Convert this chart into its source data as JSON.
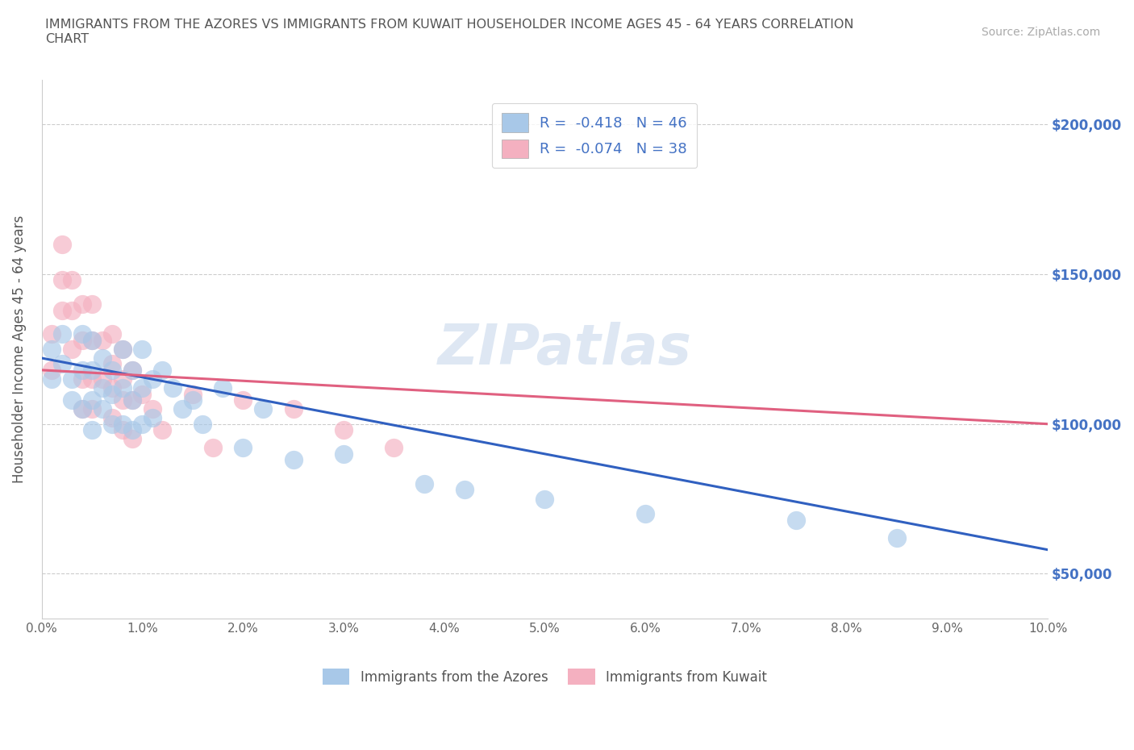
{
  "title": "IMMIGRANTS FROM THE AZORES VS IMMIGRANTS FROM KUWAIT HOUSEHOLDER INCOME AGES 45 - 64 YEARS CORRELATION\nCHART",
  "source": "Source: ZipAtlas.com",
  "ylabel": "Householder Income Ages 45 - 64 years",
  "xlim": [
    0.0,
    0.1
  ],
  "ylim": [
    35000,
    215000
  ],
  "yticks": [
    50000,
    100000,
    150000,
    200000
  ],
  "ytick_labels": [
    "$50,000",
    "$100,000",
    "$150,000",
    "$200,000"
  ],
  "xticks": [
    0.0,
    0.01,
    0.02,
    0.03,
    0.04,
    0.05,
    0.06,
    0.07,
    0.08,
    0.09,
    0.1
  ],
  "xtick_labels": [
    "0.0%",
    "1.0%",
    "2.0%",
    "3.0%",
    "4.0%",
    "5.0%",
    "6.0%",
    "7.0%",
    "8.0%",
    "9.0%",
    "10.0%"
  ],
  "azores_color": "#a8c8e8",
  "kuwait_color": "#f4b0c0",
  "azores_R": -0.418,
  "azores_N": 46,
  "kuwait_R": -0.074,
  "kuwait_N": 38,
  "azores_line_color": "#3060c0",
  "kuwait_line_color": "#e06080",
  "legend_label_azores": "Immigrants from the Azores",
  "legend_label_kuwait": "Immigrants from Kuwait",
  "watermark": "ZIPatlas",
  "background_color": "#ffffff",
  "azores_x": [
    0.001,
    0.001,
    0.002,
    0.002,
    0.003,
    0.003,
    0.004,
    0.004,
    0.004,
    0.005,
    0.005,
    0.005,
    0.005,
    0.006,
    0.006,
    0.006,
    0.007,
    0.007,
    0.007,
    0.008,
    0.008,
    0.008,
    0.009,
    0.009,
    0.009,
    0.01,
    0.01,
    0.01,
    0.011,
    0.011,
    0.012,
    0.013,
    0.014,
    0.015,
    0.016,
    0.018,
    0.02,
    0.022,
    0.025,
    0.03,
    0.038,
    0.042,
    0.05,
    0.06,
    0.075,
    0.085
  ],
  "azores_y": [
    125000,
    115000,
    130000,
    120000,
    115000,
    108000,
    130000,
    118000,
    105000,
    128000,
    118000,
    108000,
    98000,
    122000,
    112000,
    105000,
    118000,
    110000,
    100000,
    125000,
    112000,
    100000,
    118000,
    108000,
    98000,
    125000,
    112000,
    100000,
    115000,
    102000,
    118000,
    112000,
    105000,
    108000,
    100000,
    112000,
    92000,
    105000,
    88000,
    90000,
    80000,
    78000,
    75000,
    70000,
    68000,
    62000
  ],
  "kuwait_x": [
    0.001,
    0.001,
    0.002,
    0.002,
    0.002,
    0.003,
    0.003,
    0.003,
    0.004,
    0.004,
    0.004,
    0.004,
    0.005,
    0.005,
    0.005,
    0.005,
    0.006,
    0.006,
    0.007,
    0.007,
    0.007,
    0.007,
    0.008,
    0.008,
    0.008,
    0.008,
    0.009,
    0.009,
    0.009,
    0.01,
    0.011,
    0.012,
    0.015,
    0.017,
    0.02,
    0.025,
    0.03,
    0.035
  ],
  "kuwait_y": [
    130000,
    118000,
    160000,
    148000,
    138000,
    148000,
    138000,
    125000,
    140000,
    128000,
    115000,
    105000,
    140000,
    128000,
    115000,
    105000,
    128000,
    115000,
    130000,
    120000,
    112000,
    102000,
    125000,
    115000,
    108000,
    98000,
    118000,
    108000,
    95000,
    110000,
    105000,
    98000,
    110000,
    92000,
    108000,
    105000,
    98000,
    92000
  ],
  "azores_line_x0": 0.0,
  "azores_line_y0": 122000,
  "azores_line_x1": 0.1,
  "azores_line_y1": 58000,
  "kuwait_line_x0": 0.0,
  "kuwait_line_y0": 118000,
  "kuwait_line_x1": 0.1,
  "kuwait_line_y1": 100000
}
